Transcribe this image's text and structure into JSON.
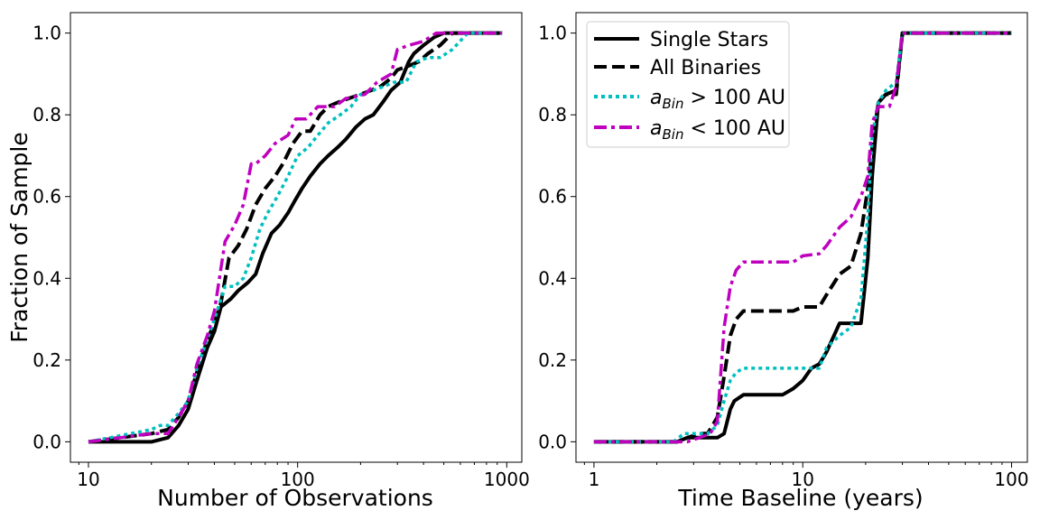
{
  "chart_data": [
    {
      "type": "line",
      "panel": "left",
      "xscale": "log",
      "xlim": [
        8.2,
        1180
      ],
      "ylim": [
        -0.05,
        1.05
      ],
      "xlabel": "Number of Observations",
      "ylabel": "Fraction of Sample",
      "xticks": [
        10,
        100,
        1000
      ],
      "xtick_labels": [
        "10",
        "100",
        "1000"
      ],
      "yticks": [
        0.0,
        0.2,
        0.4,
        0.6,
        0.8,
        1.0
      ],
      "ytick_labels": [
        "0.0",
        "0.2",
        "0.4",
        "0.6",
        "0.8",
        "1.0"
      ],
      "series": [
        {
          "name": "Single Stars",
          "color": "#000000",
          "style": "solid",
          "x": [
            10,
            20,
            24,
            27,
            30,
            33,
            37,
            40,
            43,
            48,
            52,
            58,
            63,
            68,
            75,
            82,
            90,
            97,
            105,
            115,
            128,
            140,
            155,
            170,
            190,
            210,
            230,
            255,
            280,
            310,
            340,
            360,
            400,
            450,
            500,
            950
          ],
          "y": [
            0.0,
            0.0,
            0.01,
            0.04,
            0.08,
            0.15,
            0.23,
            0.27,
            0.33,
            0.35,
            0.37,
            0.39,
            0.41,
            0.46,
            0.51,
            0.53,
            0.56,
            0.59,
            0.62,
            0.65,
            0.68,
            0.7,
            0.72,
            0.74,
            0.77,
            0.79,
            0.8,
            0.83,
            0.86,
            0.88,
            0.93,
            0.95,
            0.97,
            0.99,
            1.0,
            1.0
          ]
        },
        {
          "name": "All Binaries",
          "color": "#000000",
          "style": "dashed",
          "x": [
            10,
            20,
            24,
            27,
            30,
            33,
            37,
            40,
            43,
            47,
            52,
            57,
            63,
            70,
            78,
            85,
            95,
            105,
            115,
            128,
            140,
            155,
            175,
            200,
            225,
            250,
            280,
            300,
            340,
            380,
            420,
            480,
            550,
            950
          ],
          "y": [
            0.0,
            0.02,
            0.03,
            0.06,
            0.1,
            0.17,
            0.25,
            0.29,
            0.34,
            0.45,
            0.48,
            0.52,
            0.58,
            0.62,
            0.65,
            0.68,
            0.73,
            0.76,
            0.76,
            0.8,
            0.82,
            0.83,
            0.84,
            0.85,
            0.86,
            0.87,
            0.89,
            0.91,
            0.92,
            0.93,
            0.95,
            0.97,
            1.0,
            1.0
          ]
        },
        {
          "name": "$a_{Bin} > 100$ AU",
          "color": "#00bfbf",
          "style": "dotted",
          "x": [
            10,
            20,
            22,
            24,
            27,
            30,
            33,
            37,
            40,
            45,
            50,
            55,
            60,
            66,
            72,
            80,
            90,
            100,
            112,
            125,
            140,
            160,
            180,
            200,
            230,
            260,
            290,
            330,
            370,
            420,
            480,
            550,
            650,
            950
          ],
          "y": [
            0.0,
            0.03,
            0.04,
            0.04,
            0.07,
            0.1,
            0.18,
            0.25,
            0.3,
            0.38,
            0.38,
            0.4,
            0.45,
            0.52,
            0.56,
            0.6,
            0.65,
            0.7,
            0.72,
            0.75,
            0.78,
            0.8,
            0.82,
            0.85,
            0.86,
            0.87,
            0.88,
            0.88,
            0.93,
            0.94,
            0.94,
            0.96,
            1.0,
            1.0
          ]
        },
        {
          "name": "$a_{Bin} < 100$ AU",
          "color": "#bf00bf",
          "style": "dashdot",
          "x": [
            10,
            20,
            24,
            27,
            30,
            33,
            37,
            40,
            45,
            50,
            55,
            60,
            63,
            70,
            78,
            90,
            98,
            110,
            125,
            150,
            170,
            210,
            240,
            280,
            300,
            340,
            400,
            460,
            520,
            950
          ],
          "y": [
            0.0,
            0.02,
            0.02,
            0.06,
            0.1,
            0.19,
            0.26,
            0.32,
            0.49,
            0.53,
            0.58,
            0.68,
            0.68,
            0.7,
            0.73,
            0.75,
            0.79,
            0.79,
            0.82,
            0.82,
            0.84,
            0.85,
            0.88,
            0.9,
            0.96,
            0.97,
            0.98,
            1.0,
            1.0,
            1.0
          ]
        }
      ]
    },
    {
      "type": "line",
      "panel": "right",
      "xscale": "log",
      "xlim": [
        0.82,
        119
      ],
      "ylim": [
        -0.05,
        1.05
      ],
      "xlabel": "Time Baseline (years)",
      "ylabel": "",
      "xticks": [
        1,
        10,
        100
      ],
      "xtick_labels": [
        "1",
        "10",
        "100"
      ],
      "yticks": [
        0.0,
        0.2,
        0.4,
        0.6,
        0.8,
        1.0
      ],
      "ytick_labels": [
        "0.0",
        "0.2",
        "0.4",
        "0.6",
        "0.8",
        "1.0"
      ],
      "legend_position": "top-left",
      "series": [
        {
          "name": "Single Stars",
          "color": "#000000",
          "style": "solid",
          "x": [
            1.0,
            2.5,
            2.8,
            3.2,
            3.5,
            3.9,
            4.2,
            4.5,
            4.7,
            5.2,
            6.0,
            7.0,
            8.0,
            9.0,
            10.0,
            11.0,
            12.0,
            13.0,
            15.0,
            17.0,
            19.0,
            20.5,
            21.5,
            23.0,
            25.0,
            28.0,
            30.0,
            100.0
          ],
          "y": [
            0.0,
            0.0,
            0.01,
            0.01,
            0.01,
            0.01,
            0.02,
            0.08,
            0.1,
            0.115,
            0.115,
            0.115,
            0.115,
            0.13,
            0.15,
            0.18,
            0.19,
            0.22,
            0.29,
            0.29,
            0.29,
            0.45,
            0.65,
            0.83,
            0.85,
            0.86,
            1.0,
            1.0
          ]
        },
        {
          "name": "All Binaries",
          "color": "#000000",
          "style": "dashed",
          "x": [
            1.0,
            2.5,
            2.8,
            3.2,
            3.5,
            3.9,
            4.2,
            4.5,
            4.8,
            5.2,
            6.0,
            7.0,
            9.0,
            10.0,
            12.0,
            13.0,
            15.0,
            17.0,
            19.0,
            20.5,
            21.5,
            23.0,
            25.0,
            28.0,
            30.0,
            100.0
          ],
          "y": [
            0.0,
            0.0,
            0.01,
            0.02,
            0.02,
            0.06,
            0.16,
            0.26,
            0.3,
            0.32,
            0.32,
            0.32,
            0.32,
            0.33,
            0.33,
            0.36,
            0.41,
            0.43,
            0.51,
            0.62,
            0.72,
            0.83,
            0.85,
            0.85,
            1.0,
            1.0
          ]
        },
        {
          "name": "$a_{Bin} > 100$ AU",
          "color": "#00bfbf",
          "style": "dotted",
          "x": [
            1.0,
            2.4,
            2.7,
            3.0,
            3.5,
            3.9,
            4.2,
            4.5,
            4.8,
            5.2,
            6.0,
            8.0,
            10.0,
            11.0,
            12.0,
            13.0,
            15.0,
            17.0,
            19.0,
            20.5,
            21.5,
            23.0,
            25.0,
            28.0,
            30.0,
            100.0
          ],
          "y": [
            0.0,
            0.0,
            0.02,
            0.02,
            0.02,
            0.04,
            0.1,
            0.15,
            0.17,
            0.18,
            0.18,
            0.18,
            0.18,
            0.18,
            0.18,
            0.23,
            0.26,
            0.28,
            0.35,
            0.55,
            0.75,
            0.83,
            0.86,
            0.88,
            1.0,
            1.0
          ]
        },
        {
          "name": "$a_{Bin} < 100$ AU",
          "color": "#bf00bf",
          "style": "dashdot",
          "x": [
            1.0,
            2.8,
            3.2,
            3.6,
            3.9,
            4.2,
            4.5,
            4.8,
            5.2,
            6.0,
            8.0,
            9.0,
            10.0,
            12.0,
            13.0,
            15.0,
            17.0,
            19.0,
            20.5,
            21.5,
            23.0,
            24.0,
            26.0,
            28.0,
            30.0,
            100.0
          ],
          "y": [
            0.0,
            0.0,
            0.01,
            0.02,
            0.05,
            0.28,
            0.38,
            0.42,
            0.44,
            0.44,
            0.44,
            0.44,
            0.455,
            0.46,
            0.48,
            0.525,
            0.55,
            0.6,
            0.65,
            0.78,
            0.82,
            0.82,
            0.82,
            0.87,
            1.0,
            1.0
          ]
        }
      ]
    }
  ]
}
